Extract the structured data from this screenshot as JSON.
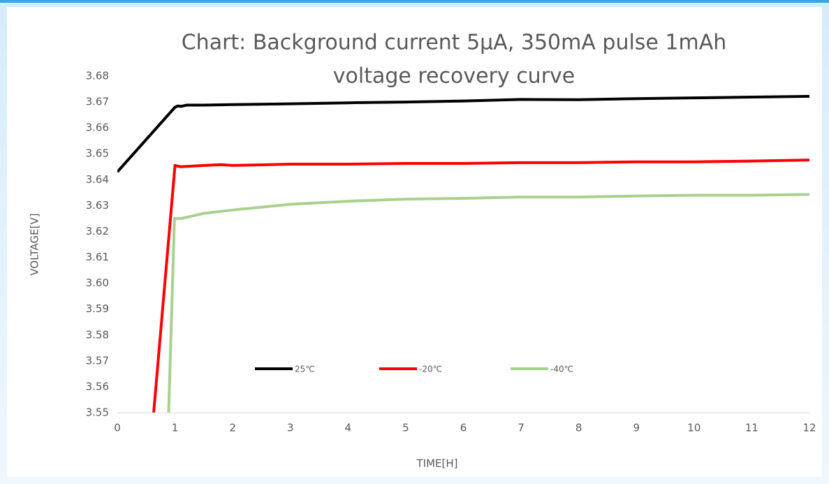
{
  "chart_data": {
    "type": "line",
    "title": [
      "Chart: Background current 5μA, 350mA pulse 1mAh",
      "voltage recovery curve"
    ],
    "x_label": "TIME[H]",
    "y_label": "VOLTAGE[V]",
    "xlim": [
      0,
      12
    ],
    "xticks": [
      0,
      1,
      2,
      3,
      4,
      5,
      6,
      7,
      8,
      9,
      10,
      11,
      12
    ],
    "ylim": [
      3.55,
      3.68
    ],
    "yticks": [
      3.55,
      3.56,
      3.57,
      3.58,
      3.59,
      {
        "value": 3.6,
        "label": "3.60"
      },
      3.61,
      3.62,
      3.63,
      3.64,
      3.65,
      3.66,
      3.67,
      3.68
    ],
    "grid": false,
    "legend": "inside-bottom",
    "series": [
      {
        "name": "25℃",
        "color": "#000000",
        "x": [
          0,
          1,
          1.05,
          1.1,
          1.2,
          1.5,
          2,
          3,
          4,
          5,
          6,
          7,
          8,
          9,
          10,
          11,
          12
        ],
        "values": [
          3.643,
          3.668,
          3.6685,
          3.6683,
          3.6688,
          3.6688,
          3.669,
          3.6693,
          3.6697,
          3.67,
          3.6704,
          3.671,
          3.6709,
          3.6713,
          3.6716,
          3.6719,
          3.6722
        ]
      },
      {
        "name": "-20℃",
        "color": "#ff0000",
        "x": [
          0.63,
          1,
          1.1,
          1.5,
          1.8,
          2,
          3,
          4,
          5,
          6,
          7,
          8,
          9,
          10,
          11,
          12
        ],
        "values": [
          3.55,
          3.6455,
          3.645,
          3.6455,
          3.6458,
          3.6455,
          3.646,
          3.646,
          3.6463,
          3.6463,
          3.6466,
          3.6466,
          3.6469,
          3.6469,
          3.6472,
          3.6476
        ]
      },
      {
        "name": "-40℃",
        "color": "#a9d18e",
        "x": [
          0.89,
          0.99,
          1.1,
          1.5,
          2,
          3,
          4,
          5,
          6,
          7,
          8,
          9,
          10,
          11,
          12
        ],
        "values": [
          3.55,
          3.625,
          3.625,
          3.627,
          3.6283,
          3.6305,
          3.6317,
          3.6325,
          3.6328,
          3.6333,
          3.6333,
          3.6337,
          3.634,
          3.634,
          3.6343
        ]
      }
    ]
  }
}
